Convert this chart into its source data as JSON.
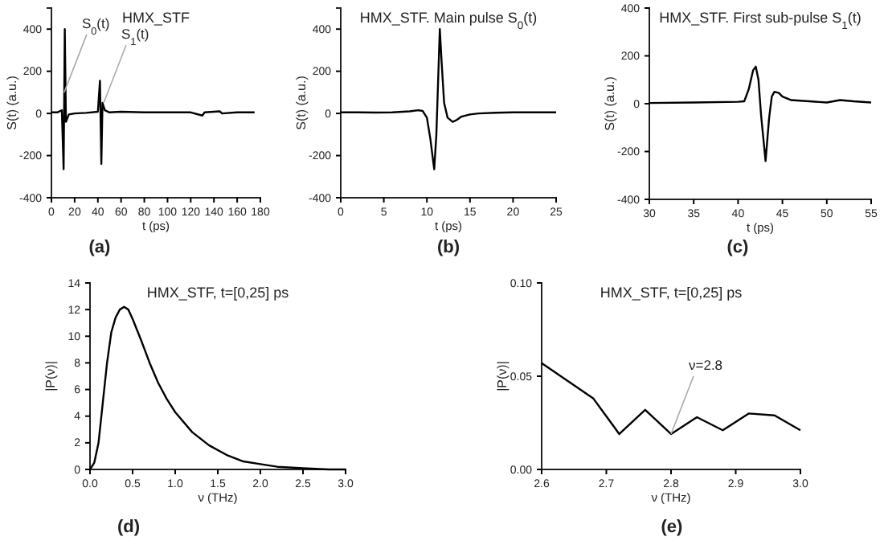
{
  "chart_data": [
    {
      "type": "line",
      "title": "HMX_STF",
      "xlabel": "t (ps)",
      "ylabel": "S(t) (a.u.)",
      "xlim": [
        0,
        180
      ],
      "xticks": [
        0,
        20,
        40,
        60,
        80,
        100,
        120,
        140,
        160,
        180
      ],
      "ylim": [
        -400,
        500
      ],
      "yticks": [
        -400,
        -200,
        0,
        200,
        400
      ],
      "grid": false,
      "marker": "none",
      "line_style": "solid",
      "series": [
        {
          "color": "#000000",
          "x": [
            0,
            5,
            9,
            10.5,
            11.5,
            12.5,
            15,
            20,
            30,
            40,
            41.8,
            43,
            44,
            46,
            50,
            60,
            80,
            100,
            120,
            130,
            132,
            145,
            147,
            160,
            175
          ],
          "values": [
            5,
            5,
            15,
            -265,
            400,
            -40,
            -5,
            0,
            3,
            8,
            155,
            -240,
            50,
            15,
            5,
            8,
            5,
            5,
            5,
            -10,
            5,
            10,
            0,
            5,
            5
          ]
        }
      ],
      "annotations": [
        {
          "text": "S$_{0}$(t)",
          "x": 11,
          "y": 100
        },
        {
          "text": "S$_{1}$(t)",
          "x": 45,
          "y": 50
        },
        "(a)"
      ]
    },
    {
      "type": "line",
      "title": "HMX_STF.  Main pulse  S$_{0}$(t)",
      "xlabel": "t (ps)",
      "ylabel": "S(t) (a.u.)",
      "xlim": [
        0,
        25
      ],
      "xticks": [
        0,
        5,
        10,
        15,
        20,
        25
      ],
      "ylim": [
        -400,
        500
      ],
      "yticks": [
        -400,
        -200,
        0,
        200,
        400
      ],
      "grid": false,
      "marker": "none",
      "line_style": "solid",
      "series": [
        {
          "color": "#000000",
          "x": [
            0,
            2,
            4,
            6,
            8,
            9,
            9.5,
            10,
            10.4,
            10.85,
            11.1,
            11.3,
            11.5,
            11.7,
            12,
            12.4,
            13,
            13.5,
            14,
            15,
            16,
            18,
            20,
            22,
            25
          ],
          "values": [
            5,
            5,
            4,
            5,
            10,
            15,
            12,
            -20,
            -120,
            -265,
            -100,
            150,
            400,
            250,
            50,
            -20,
            -40,
            -30,
            -15,
            -5,
            0,
            3,
            5,
            5,
            5
          ]
        }
      ],
      "annotations": [
        "(b)"
      ]
    },
    {
      "type": "line",
      "title": "HMX_STF. First sub-pulse  S$_{1}$(t)",
      "xlabel": "t (ps)",
      "ylabel": "S(t) (a.u.)",
      "xlim": [
        30,
        55
      ],
      "xticks": [
        30,
        35,
        40,
        45,
        50,
        55
      ],
      "ylim": [
        -400,
        400
      ],
      "yticks": [
        -400,
        -200,
        0,
        200,
        400
      ],
      "grid": false,
      "marker": "none",
      "line_style": "solid",
      "series": [
        {
          "color": "#000000",
          "x": [
            30,
            35,
            40,
            40.7,
            41.2,
            41.7,
            42,
            42.3,
            42.6,
            43.1,
            43.5,
            43.8,
            44.1,
            44.6,
            45,
            46,
            48,
            50,
            51.5,
            53,
            55
          ],
          "values": [
            3,
            5,
            8,
            10,
            60,
            140,
            155,
            100,
            -50,
            -240,
            -60,
            30,
            50,
            45,
            30,
            15,
            10,
            5,
            15,
            10,
            5
          ]
        }
      ],
      "annotations": [
        "(c)"
      ]
    },
    {
      "type": "line",
      "title": "HMX_STF, t=[0,25] ps",
      "xlabel": "ν (THz)",
      "ylabel": "|P(ν)|",
      "xlim": [
        0,
        3
      ],
      "xticks": [
        {
          "value": 0,
          "label": "0.0"
        },
        0.5,
        {
          "value": 1,
          "label": "1.0"
        },
        1.5,
        {
          "value": 2,
          "label": "2.0"
        },
        2.5,
        {
          "value": 3,
          "label": "3.0"
        }
      ],
      "ylim": [
        0,
        14
      ],
      "yticks": [
        0,
        2,
        4,
        6,
        8,
        10,
        12,
        14
      ],
      "grid": false,
      "marker": "none",
      "line_style": "solid",
      "series": [
        {
          "color": "#000000",
          "x": [
            0,
            0.05,
            0.1,
            0.15,
            0.2,
            0.25,
            0.3,
            0.35,
            0.4,
            0.45,
            0.5,
            0.6,
            0.7,
            0.8,
            0.9,
            1.0,
            1.2,
            1.4,
            1.6,
            1.8,
            2.0,
            2.2,
            2.5,
            2.8,
            3.0
          ],
          "values": [
            0,
            0.5,
            2,
            5,
            8,
            10.3,
            11.4,
            12,
            12.2,
            12,
            11.3,
            9.7,
            8,
            6.5,
            5.3,
            4.3,
            2.8,
            1.8,
            1.1,
            0.6,
            0.4,
            0.2,
            0.1,
            0,
            0
          ]
        }
      ],
      "annotations": [
        "(d)"
      ]
    },
    {
      "type": "line",
      "title": "HMX_STF, t=[0,25] ps",
      "xlabel": "ν (THz)",
      "ylabel": "|P(ν)|",
      "xlim": [
        2.6,
        3.0
      ],
      "xticks": [
        2.6,
        2.7,
        2.8,
        2.9,
        {
          "value": 3.0,
          "label": "3.0"
        }
      ],
      "ylim": [
        0,
        0.1
      ],
      "yticks": [
        {
          "value": 0,
          "label": "0.00"
        },
        0.05,
        {
          "value": 0.1,
          "label": "0.10"
        }
      ],
      "grid": false,
      "marker": "none",
      "line_style": "solid",
      "series": [
        {
          "color": "#000000",
          "x": [
            2.6,
            2.68,
            2.72,
            2.76,
            2.8,
            2.84,
            2.88,
            2.92,
            2.96,
            3.0
          ],
          "values": [
            0.057,
            0.038,
            0.019,
            0.032,
            0.019,
            0.028,
            0.021,
            0.03,
            0.029,
            0.021
          ]
        }
      ],
      "annotations": [
        {
          "text": "ν=2.8",
          "x": 2.8,
          "y": 0.019
        },
        "(e)"
      ]
    }
  ]
}
